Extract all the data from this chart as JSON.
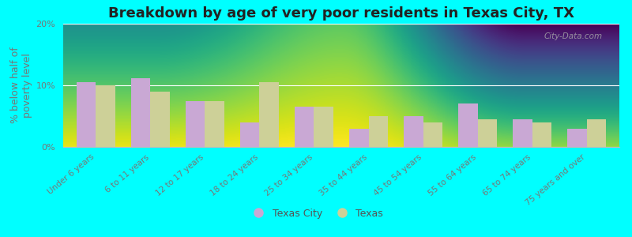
{
  "title": "Breakdown by age of very poor residents in Texas City, TX",
  "ylabel": "% below half of\npoverty level",
  "categories": [
    "Under 6 years",
    "6 to 11 years",
    "12 to 17 years",
    "18 to 24 years",
    "25 to 34 years",
    "35 to 44 years",
    "45 to 54 years",
    "55 to 64 years",
    "65 to 74 years",
    "75 years and over"
  ],
  "texas_city_values": [
    10.5,
    11.2,
    7.5,
    4.0,
    6.5,
    3.0,
    5.0,
    7.0,
    4.5,
    3.0
  ],
  "texas_values": [
    10.0,
    9.0,
    7.5,
    10.5,
    6.5,
    5.0,
    4.0,
    4.5,
    4.0,
    4.5
  ],
  "texas_city_color": "#c9a8d4",
  "texas_color": "#cdd098",
  "background_outer": "#00ffff",
  "ylim": [
    0,
    20
  ],
  "yticks": [
    0,
    10,
    20
  ],
  "ytick_labels": [
    "0%",
    "10%",
    "20%"
  ],
  "bar_width": 0.35,
  "title_fontsize": 13,
  "axis_label_fontsize": 9,
  "tick_fontsize": 8,
  "legend_labels": [
    "Texas City",
    "Texas"
  ],
  "watermark": "City-Data.com"
}
